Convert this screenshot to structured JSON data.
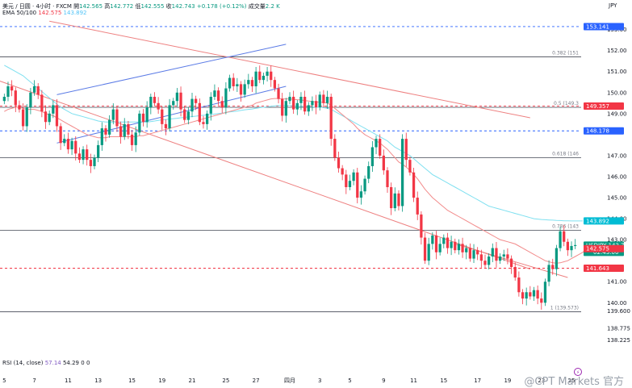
{
  "header": {
    "symbol": "美元 / 日圆 · 4小时 · FXCM",
    "open_label": "開",
    "open": "142.565",
    "high_label": "高",
    "high": "142.772",
    "low_label": "低",
    "low": "142.555",
    "close_label": "收",
    "close": "142.743",
    "change": "+0.178 (+0.12%)",
    "volume_label": "成交量",
    "volume": "2.2 K",
    "ema_label": "EMA 50/100",
    "ema50": "142.575",
    "ema100": "143.892"
  },
  "rsi": {
    "label": "RSI (14, close)",
    "v1": "57.14",
    "v2": "54.29",
    "v3": "0",
    "v4": "0"
  },
  "currency": "JPY",
  "watermark": "@CPT Markets 官方",
  "colors": {
    "up": "#089981",
    "down": "#f23645",
    "ema50": "#f28b8b",
    "ema100": "#7fe0f0",
    "blue_channel": "#5b7be6",
    "red_channel": "#ee8080",
    "dashed_blue": "#2962ff",
    "dashed_red": "#f23645"
  },
  "chart_data": {
    "type": "candlestick",
    "instrument": "USDJPY",
    "ylim": [
      137.9,
      153.6
    ],
    "x_tick_labels": [
      "5",
      "7",
      "11",
      "13",
      "15",
      "19",
      "21",
      "25",
      "27",
      "四月",
      "3",
      "5",
      "9",
      "11",
      "15",
      "17",
      "19",
      "23",
      "25"
    ],
    "y_ticks": [
      "153.00",
      "152.00",
      "151.00",
      "150.00",
      "149.00",
      "147.00",
      "146.00",
      "145.00",
      "144.00",
      "143.00",
      "141.00",
      "140.00",
      "139.600",
      "138.775",
      "138.225"
    ],
    "fib_levels": [
      {
        "label": "0.382 (151",
        "value": 151.7
      },
      {
        "label": "0.5 (149.3",
        "value": 149.3
      },
      {
        "label": "0.618 (146",
        "value": 146.9
      },
      {
        "label": "0.786 (143",
        "value": 143.45
      },
      {
        "label": "1 (139.573)",
        "value": 139.57
      }
    ],
    "dashed_levels": [
      {
        "value": 153.141,
        "label": "153.141",
        "color": "blue"
      },
      {
        "value": 149.357,
        "label": "149.357",
        "color": "red"
      },
      {
        "value": 148.178,
        "label": "148.178",
        "color": "blue"
      },
      {
        "value": 141.643,
        "label": "141.643",
        "color": "red"
      }
    ],
    "price_tags": [
      {
        "value": 142.743,
        "label": "USDJPY",
        "sub": "142.743",
        "extra": "02:43:00",
        "color": "green"
      },
      {
        "value": 142.575,
        "label": "142.575",
        "color": "red"
      },
      {
        "value": 143.892,
        "label": "143.892",
        "color": "cyan"
      }
    ],
    "closes": [
      149.8,
      150.3,
      150.1,
      149.4,
      149.2,
      148.4,
      149.3,
      150.0,
      150.3,
      149.9,
      149.1,
      148.6,
      149.0,
      149.4,
      148.4,
      147.6,
      147.8,
      147.3,
      147.7,
      147.1,
      146.8,
      147.3,
      146.8,
      146.5,
      146.9,
      147.5,
      148.3,
      148.0,
      148.7,
      149.2,
      148.4,
      147.9,
      148.5,
      148.0,
      147.5,
      148.1,
      149.0,
      148.6,
      149.3,
      149.8,
      149.5,
      149.2,
      148.5,
      148.3,
      149.4,
      149.6,
      150.0,
      149.2,
      148.7,
      149.1,
      149.7,
      149.5,
      148.6,
      148.5,
      149.0,
      149.8,
      150.1,
      149.6,
      149.3,
      150.2,
      150.7,
      150.3,
      150.4,
      149.9,
      150.4,
      150.6,
      150.3,
      151.0,
      150.6,
      150.8,
      151.0,
      150.6,
      150.2,
      149.7,
      148.9,
      149.6,
      149.8,
      149.2,
      149.5,
      149.8,
      149.1,
      149.4,
      149.6,
      149.3,
      149.9,
      149.5,
      149.8,
      147.8,
      146.9,
      146.4,
      146.1,
      145.5,
      145.8,
      146.2,
      145.0,
      145.3,
      145.9,
      146.5,
      147.4,
      147.8,
      147.0,
      146.3,
      145.5,
      144.5,
      145.2,
      144.6,
      147.8,
      146.8,
      146.2,
      145.0,
      144.2,
      143.1,
      142.0,
      142.8,
      143.2,
      142.4,
      142.8,
      143.1,
      142.6,
      142.9,
      142.5,
      142.8,
      142.4,
      142.6,
      142.1,
      142.5,
      142.3,
      142.0,
      141.8,
      142.2,
      142.6,
      142.0,
      142.2,
      142.3,
      142.1,
      141.7,
      141.2,
      140.5,
      140.2,
      140.5,
      140.3,
      140.6,
      140.2,
      140.0,
      141.0,
      141.8,
      141.6,
      142.6,
      143.4,
      142.9,
      142.5,
      142.7,
      142.743
    ],
    "ema50": [
      149.1,
      149.2,
      149.25,
      149.3,
      149.3,
      149.25,
      149.2,
      149.2,
      149.2,
      149.15,
      149.1,
      149.0,
      148.95,
      148.9,
      148.8,
      148.7,
      148.6,
      148.5,
      148.4,
      148.3,
      148.2,
      148.1,
      148.0,
      147.95,
      147.9,
      147.85,
      147.85,
      147.85,
      147.9,
      147.9,
      147.9,
      147.9,
      147.9,
      147.9,
      147.9,
      147.9,
      147.95,
      147.95,
      148.0,
      148.05,
      148.1,
      148.15,
      148.2,
      148.25,
      148.3,
      148.35,
      148.4,
      148.45,
      148.5,
      148.55,
      148.6,
      148.65,
      148.7,
      148.75,
      148.8,
      148.85,
      148.9,
      148.95,
      149.0,
      149.05,
      149.1,
      149.15,
      149.2,
      149.25,
      149.3,
      149.35,
      149.4,
      149.5,
      149.55,
      149.6,
      149.65,
      149.7,
      149.72,
      149.72,
      149.7,
      149.7,
      149.7,
      149.68,
      149.66,
      149.65,
      149.62,
      149.6,
      149.58,
      149.55,
      149.55,
      149.53,
      149.5,
      149.4,
      149.25,
      149.1,
      148.95,
      148.8,
      148.65,
      148.5,
      148.3,
      148.15,
      148.0,
      147.9,
      147.8,
      147.7,
      147.6,
      147.45,
      147.3,
      147.1,
      146.9,
      146.7,
      146.6,
      146.45,
      146.3,
      146.1,
      145.9,
      145.65,
      145.4,
      145.2,
      145.0,
      144.85,
      144.7,
      144.55,
      144.4,
      144.3,
      144.2,
      144.1,
      144.0,
      143.9,
      143.8,
      143.7,
      143.6,
      143.5,
      143.4,
      143.3,
      143.2,
      143.1,
      143.0,
      142.95,
      142.9,
      142.85,
      142.8,
      142.7,
      142.6,
      142.5,
      142.4,
      142.3,
      142.2,
      142.1,
      142.0,
      141.95,
      141.9,
      141.88,
      141.9,
      141.95,
      142.0,
      142.1,
      142.2,
      142.3,
      142.4,
      142.575
    ],
    "ema100": [
      151.3,
      151.2,
      151.1,
      151.0,
      150.9,
      150.8,
      150.65,
      150.5,
      150.35,
      150.2,
      150.05,
      149.9,
      149.75,
      149.6,
      149.45,
      149.3,
      149.2,
      149.1,
      149.0,
      148.95,
      148.9,
      148.85,
      148.8,
      148.75,
      148.7,
      148.65,
      148.62,
      148.6,
      148.6,
      148.6,
      148.6,
      148.6,
      148.6,
      148.6,
      148.6,
      148.6,
      148.6,
      148.6,
      148.6,
      148.62,
      148.65,
      148.68,
      148.7,
      148.72,
      148.74,
      148.76,
      148.78,
      148.8,
      148.82,
      148.84,
      148.86,
      148.88,
      148.9,
      148.92,
      148.94,
      148.96,
      148.98,
      149.0,
      149.02,
      149.05,
      149.08,
      149.1,
      149.12,
      149.15,
      149.18,
      149.2,
      149.22,
      149.25,
      149.28,
      149.3,
      149.32,
      149.35,
      149.37,
      149.38,
      149.38,
      149.38,
      149.38,
      149.37,
      149.36,
      149.35,
      149.34,
      149.33,
      149.32,
      149.3,
      149.3,
      149.28,
      149.26,
      149.2,
      149.1,
      149.0,
      148.9,
      148.8,
      148.7,
      148.6,
      148.5,
      148.4,
      148.3,
      148.2,
      148.1,
      148.0,
      147.9,
      147.8,
      147.7,
      147.55,
      147.4,
      147.3,
      147.2,
      147.1,
      147.0,
      146.85,
      146.7,
      146.55,
      146.4,
      146.25,
      146.1,
      146.0,
      145.9,
      145.8,
      145.7,
      145.6,
      145.5,
      145.4,
      145.3,
      145.2,
      145.1,
      145.0,
      144.9,
      144.8,
      144.7,
      144.6,
      144.55,
      144.5,
      144.45,
      144.4,
      144.35,
      144.3,
      144.25,
      144.2,
      144.15,
      144.1,
      144.05,
      144.0,
      143.98,
      143.96,
      143.95,
      143.94,
      143.93,
      143.92,
      143.91,
      143.9,
      143.9,
      143.892,
      143.892,
      143.892,
      143.892
    ]
  }
}
